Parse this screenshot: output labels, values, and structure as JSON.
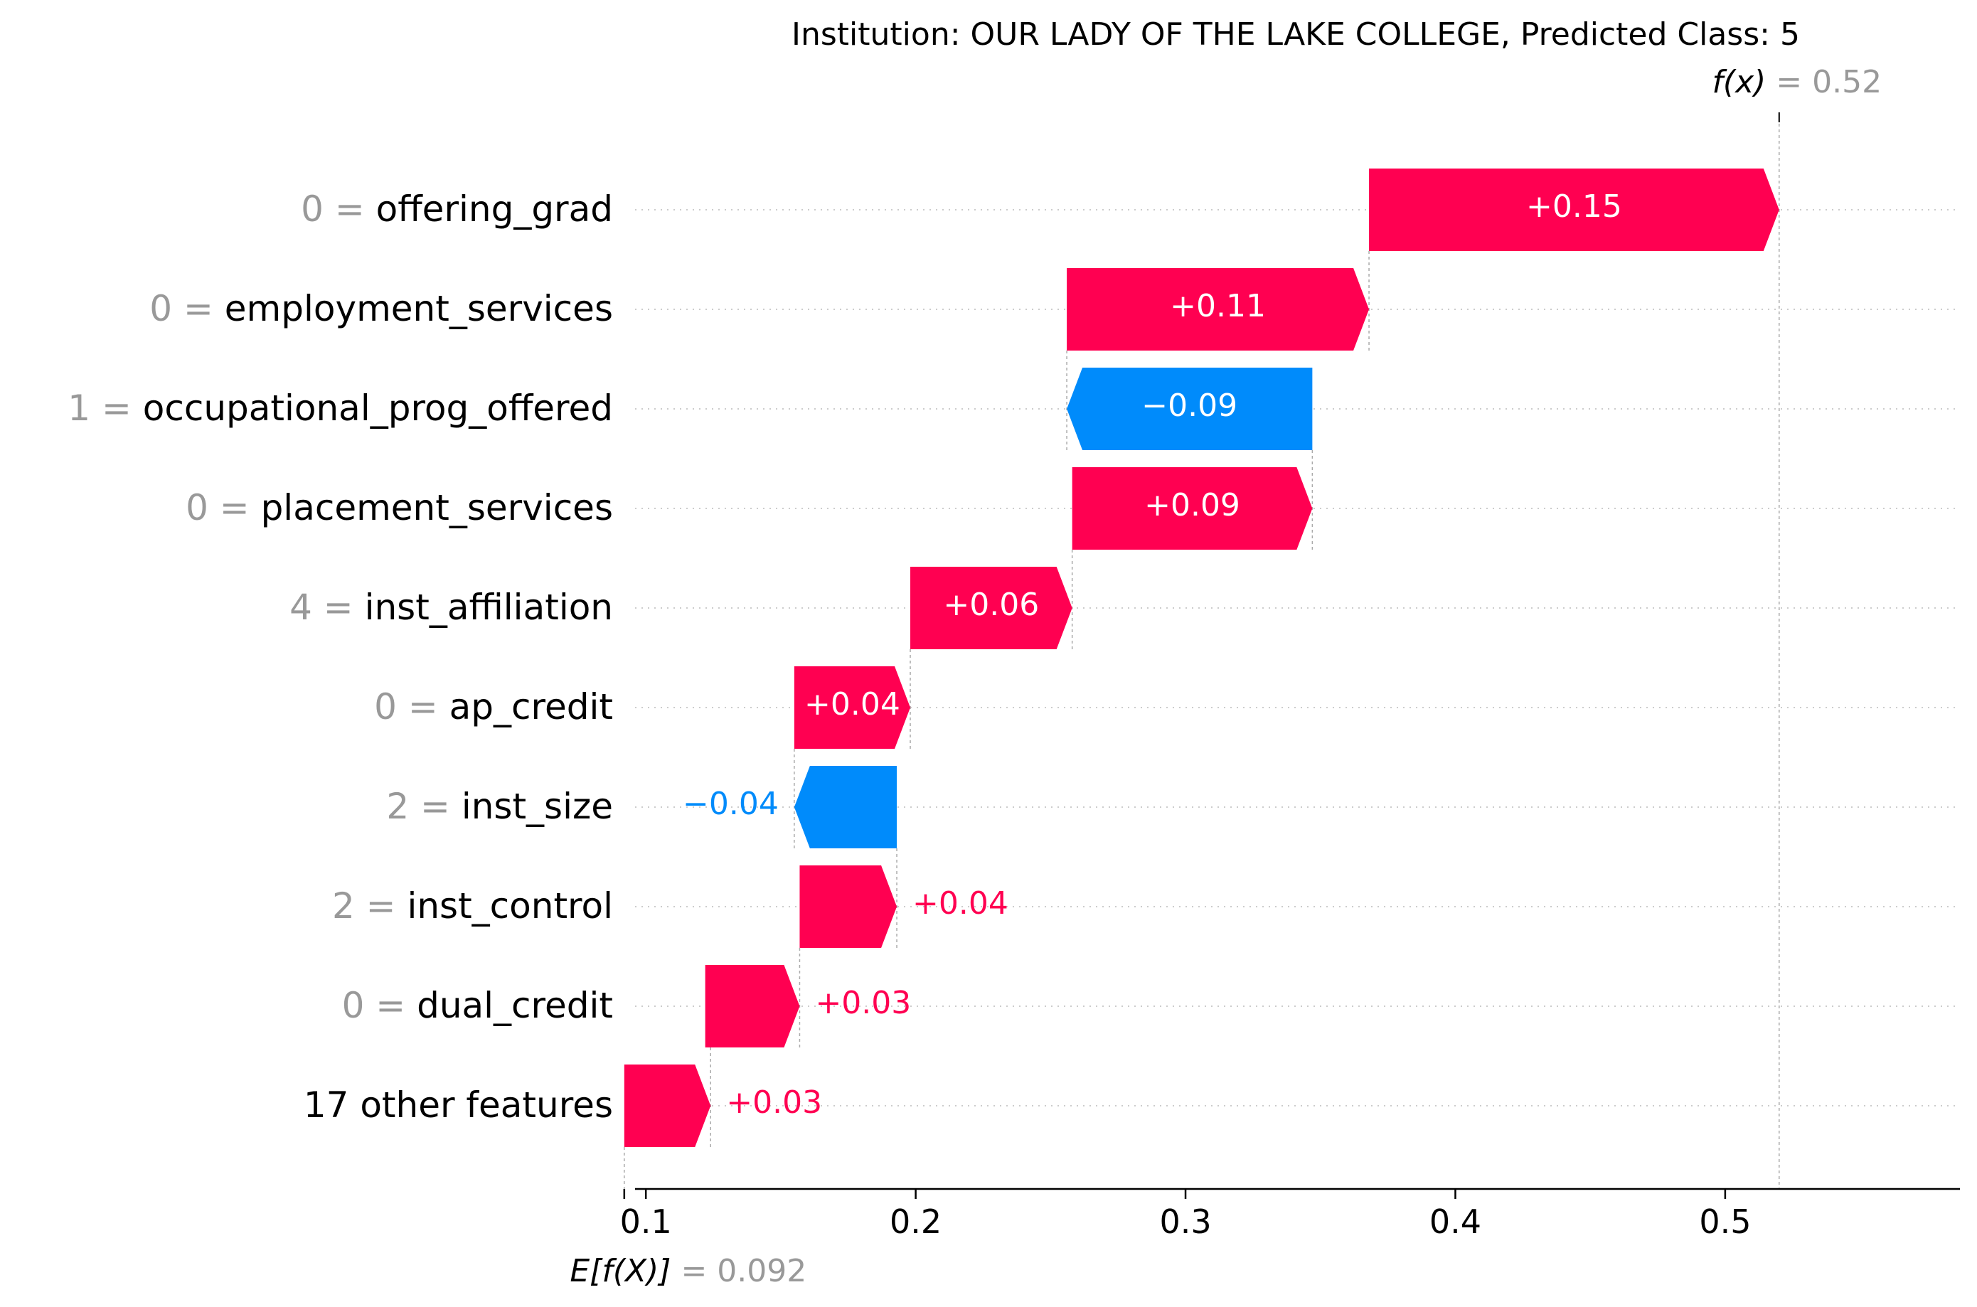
{
  "chart_data": {
    "type": "waterfall",
    "title": "Institution: OUR LADY OF THE LAKE COLLEGE, Predicted Class: 5",
    "fx": {
      "label_italic": "f(x)",
      "value_text": "= 0.52",
      "value": 0.52
    },
    "base": {
      "label_italic": "E[f(X)]",
      "value_text": "= 0.092",
      "value": 0.092
    },
    "xlim": [
      0.096,
      0.587
    ],
    "xticks": [
      {
        "value": 0.1,
        "label": "0.1"
      },
      {
        "value": 0.2,
        "label": "0.2"
      },
      {
        "value": 0.3,
        "label": "0.3"
      },
      {
        "value": 0.4,
        "label": "0.4"
      },
      {
        "value": 0.5,
        "label": "0.5"
      }
    ],
    "grid": "horizontal dotted row guides",
    "colors": {
      "positive": "#ff0051",
      "negative": "#008bfb",
      "feature_value": "#999999",
      "axis": "#000000"
    },
    "rows": [
      {
        "value_text": "0",
        "feature": "offering_grad",
        "start": 0.368,
        "end": 0.52,
        "label": "+0.15",
        "label_inside": true
      },
      {
        "value_text": "0",
        "feature": "employment_services",
        "start": 0.256,
        "end": 0.368,
        "label": "+0.11",
        "label_inside": true
      },
      {
        "value_text": "1",
        "feature": "occupational_prog_offered",
        "start": 0.347,
        "end": 0.256,
        "label": "−0.09",
        "label_inside": true
      },
      {
        "value_text": "0",
        "feature": "placement_services",
        "start": 0.258,
        "end": 0.347,
        "label": "+0.09",
        "label_inside": true
      },
      {
        "value_text": "4",
        "feature": "inst_affiliation",
        "start": 0.198,
        "end": 0.258,
        "label": "+0.06",
        "label_inside": true
      },
      {
        "value_text": "0",
        "feature": "ap_credit",
        "start": 0.155,
        "end": 0.198,
        "label": "+0.04",
        "label_inside": true
      },
      {
        "value_text": "2",
        "feature": "inst_size",
        "start": 0.193,
        "end": 0.155,
        "label": "−0.04",
        "label_inside": false
      },
      {
        "value_text": "2",
        "feature": "inst_control",
        "start": 0.157,
        "end": 0.193,
        "label": "+0.04",
        "label_inside": false
      },
      {
        "value_text": "0",
        "feature": "dual_credit",
        "start": 0.122,
        "end": 0.157,
        "label": "+0.03",
        "label_inside": false
      },
      {
        "value_text": "",
        "feature": "17 other features",
        "start": 0.092,
        "end": 0.124,
        "label": "+0.03",
        "label_inside": false
      }
    ]
  }
}
